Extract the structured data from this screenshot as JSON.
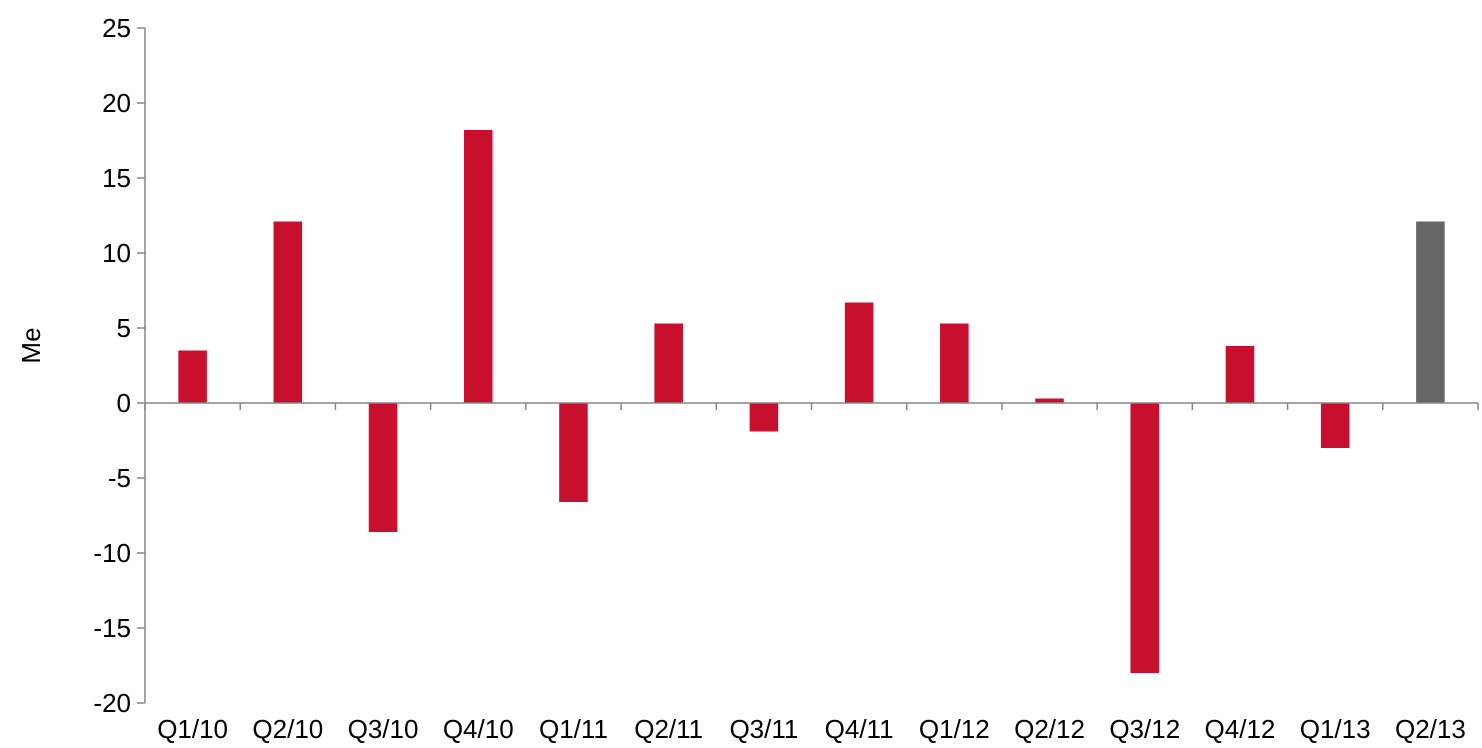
{
  "chart_data": {
    "type": "bar",
    "title": "",
    "xlabel": "",
    "ylabel": "Me",
    "ylim": [
      -20,
      25
    ],
    "yticks": [
      25,
      20,
      15,
      10,
      5,
      0,
      -5,
      -10,
      -15,
      -20
    ],
    "ytick_labels": [
      "25",
      "20",
      "15",
      "10",
      "5",
      "0",
      "-5",
      "-10",
      "-15",
      "-20"
    ],
    "categories": [
      "Q1/10",
      "Q2/10",
      "Q3/10",
      "Q4/10",
      "Q1/11",
      "Q2/11",
      "Q3/11",
      "Q4/11",
      "Q1/12",
      "Q2/12",
      "Q3/12",
      "Q4/12",
      "Q1/13",
      "Q2/13"
    ],
    "values": [
      3.5,
      12.1,
      -8.6,
      18.2,
      -6.6,
      5.3,
      -1.9,
      6.7,
      5.3,
      0.3,
      -18.0,
      3.8,
      -3.0,
      12.1
    ],
    "grid": false,
    "legend": "none",
    "colors": {
      "primary_bar": "#c8102e",
      "highlight_bar": "#666666",
      "axis": "#868686"
    },
    "highlight_index": 13
  }
}
